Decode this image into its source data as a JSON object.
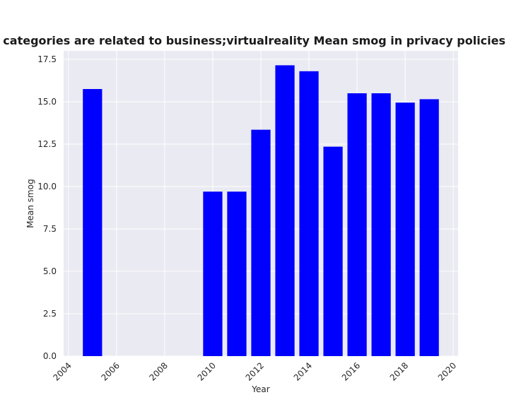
{
  "chart_data": {
    "type": "bar",
    "title": "when categories are related to business;virtualreality Mean smog in privacy policies by Year",
    "xlabel": "Year",
    "ylabel": "Mean smog",
    "x": [
      2005,
      2010,
      2011,
      2012,
      2013,
      2014,
      2015,
      2016,
      2017,
      2018,
      2019
    ],
    "values": [
      15.75,
      9.7,
      9.7,
      13.35,
      17.15,
      16.8,
      12.35,
      15.5,
      15.5,
      14.95,
      15.15
    ],
    "xlim": [
      2003.8,
      2020.2
    ],
    "ylim": [
      0,
      18
    ],
    "xticks": [
      2004,
      2006,
      2008,
      2010,
      2012,
      2014,
      2016,
      2018,
      2020
    ],
    "yticks": [
      0.0,
      2.5,
      5.0,
      7.5,
      10.0,
      12.5,
      15.0,
      17.5
    ],
    "ytick_labels": [
      "0.0",
      "2.5",
      "5.0",
      "7.5",
      "10.0",
      "12.5",
      "15.0",
      "17.5"
    ],
    "bar_color": "#0000ff",
    "plot_background": "#eaeaf2",
    "grid": true,
    "style": "seaborn-darkgrid"
  }
}
